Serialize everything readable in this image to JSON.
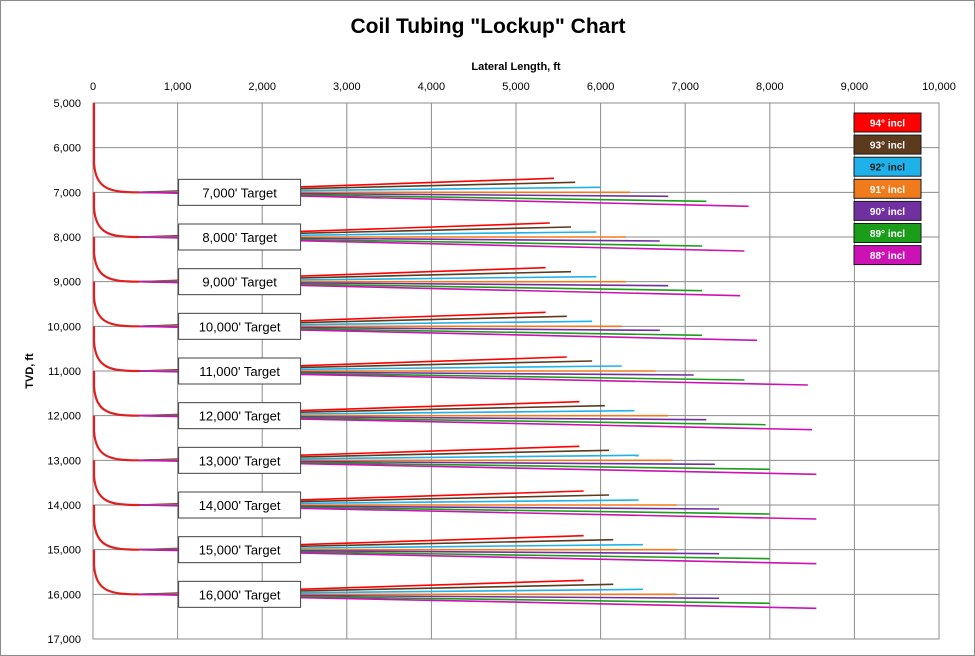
{
  "chart_data": {
    "type": "line",
    "title": "Coil Tubing \"Lockup\" Chart",
    "xlabel": "Lateral Length, ft",
    "ylabel": "TVD, ft",
    "xlim": [
      0,
      10000
    ],
    "ylim": [
      5000,
      17000
    ],
    "y_inverted": true,
    "x_axis_position": "top",
    "x_ticks": [
      "0",
      "1,000",
      "2,000",
      "3,000",
      "4,000",
      "5,000",
      "6,000",
      "7,000",
      "8,000",
      "9,000",
      "10,000"
    ],
    "y_ticks": [
      "5,000",
      "6,000",
      "7,000",
      "8,000",
      "9,000",
      "10,000",
      "11,000",
      "12,000",
      "13,000",
      "14,000",
      "15,000",
      "16,000",
      "17,000"
    ],
    "grid": true,
    "legend_position": "top-right",
    "series": [
      {
        "name": "94° incl",
        "color": "#ff0000",
        "inclination": 94
      },
      {
        "name": "93° incl",
        "color": "#5c3a1e",
        "inclination": 93
      },
      {
        "name": "92° incl",
        "color": "#1fb2ea",
        "inclination": 92
      },
      {
        "name": "91° incl",
        "color": "#f07b1c",
        "inclination": 91
      },
      {
        "name": "90° incl",
        "color": "#7030a0",
        "inclination": 90
      },
      {
        "name": "89° incl",
        "color": "#1a9e1a",
        "inclination": 89
      },
      {
        "name": "88° incl",
        "color": "#cc12b4",
        "inclination": 88
      }
    ],
    "curve_color": "#e02020",
    "curve_start_tvd_offset": -650,
    "curve_end_x": 550,
    "targets": [
      {
        "label": "7,000' Target",
        "tvd": 7000,
        "lockup_lengths": [
          5450,
          5700,
          6000,
          6350,
          6800,
          7250,
          7750
        ]
      },
      {
        "label": "8,000' Target",
        "tvd": 8000,
        "lockup_lengths": [
          5400,
          5650,
          5950,
          6300,
          6700,
          7200,
          7700
        ]
      },
      {
        "label": "9,000' Target",
        "tvd": 9000,
        "lockup_lengths": [
          5350,
          5650,
          5950,
          6300,
          6800,
          7200,
          7650
        ]
      },
      {
        "label": "10,000' Target",
        "tvd": 10000,
        "lockup_lengths": [
          5350,
          5600,
          5900,
          6250,
          6700,
          7200,
          7850
        ]
      },
      {
        "label": "11,000' Target",
        "tvd": 11000,
        "lockup_lengths": [
          5600,
          5900,
          6250,
          6650,
          7100,
          7700,
          8450
        ]
      },
      {
        "label": "12,000' Target",
        "tvd": 12000,
        "lockup_lengths": [
          5750,
          6050,
          6400,
          6800,
          7250,
          7950,
          8500
        ]
      },
      {
        "label": "13,000' Target",
        "tvd": 13000,
        "lockup_lengths": [
          5750,
          6100,
          6450,
          6850,
          7350,
          8000,
          8550
        ]
      },
      {
        "label": "14,000' Target",
        "tvd": 14000,
        "lockup_lengths": [
          5800,
          6100,
          6450,
          6900,
          7400,
          8000,
          8550
        ]
      },
      {
        "label": "15,000' Target",
        "tvd": 15000,
        "lockup_lengths": [
          5800,
          6150,
          6500,
          6900,
          7400,
          8000,
          8550
        ]
      },
      {
        "label": "16,000' Target",
        "tvd": 16000,
        "lockup_lengths": [
          5800,
          6150,
          6500,
          6900,
          7400,
          8000,
          8550
        ]
      }
    ]
  }
}
